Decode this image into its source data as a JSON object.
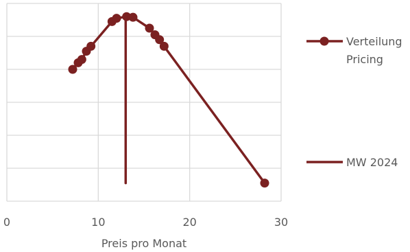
{
  "chart_data": {
    "type": "scatter",
    "title": "",
    "xlabel": "Preis pro Monat",
    "ylabel": "",
    "xlim": [
      0,
      30
    ],
    "ylim": [
      0,
      6
    ],
    "x_ticks": [
      0,
      10,
      20,
      30
    ],
    "grid": true,
    "legend_position": "right",
    "series": [
      {
        "name": "Verteilung Pricing",
        "color": "#7b2121",
        "marker": "circle",
        "points": [
          {
            "x": 7.2,
            "y": 4.0
          },
          {
            "x": 7.8,
            "y": 4.2
          },
          {
            "x": 8.2,
            "y": 4.3
          },
          {
            "x": 8.7,
            "y": 4.55
          },
          {
            "x": 9.2,
            "y": 4.7
          },
          {
            "x": 11.5,
            "y": 5.45
          },
          {
            "x": 12.0,
            "y": 5.55
          },
          {
            "x": 13.1,
            "y": 5.6
          },
          {
            "x": 13.8,
            "y": 5.58
          },
          {
            "x": 15.6,
            "y": 5.25
          },
          {
            "x": 16.2,
            "y": 5.05
          },
          {
            "x": 16.7,
            "y": 4.9
          },
          {
            "x": 17.2,
            "y": 4.7
          },
          {
            "x": 28.2,
            "y": 0.55
          }
        ]
      },
      {
        "name": "MW 2024",
        "color": "#7b2121",
        "marker": "none",
        "points": [
          {
            "x": 13.0,
            "y": 5.6
          },
          {
            "x": 13.0,
            "y": 0.55
          }
        ]
      }
    ],
    "legend": {
      "entries": [
        {
          "label_line1": "Verteilung",
          "label_line2": "Pricing"
        },
        {
          "label_line1": "MW 2024",
          "label_line2": ""
        }
      ]
    }
  }
}
